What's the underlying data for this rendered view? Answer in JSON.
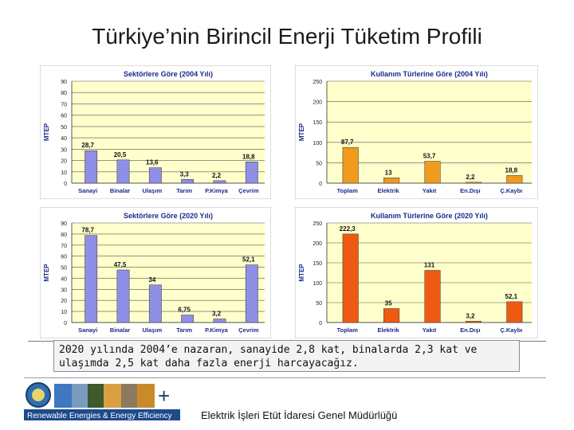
{
  "page": {
    "title": "Türkiye’nin Birincil Enerji Tüketim Profili"
  },
  "caption": "2020 yılında 2004’e nazaran, sanayide 2,8 kat, binalarda 2,3 kat ve ulaşımda 2,5 kat daha fazla enerji harcayacağız.",
  "footer": {
    "org": "Elektrik İşleri Etüt İdaresi Genel Müdürlüğü",
    "logo_text": "Renewable Energies & Energy Efficiency"
  },
  "colors": {
    "bar_blue": "#8f8fe6",
    "bar_orange": "#f09a1e",
    "bar_redorange": "#ee5a12",
    "plot_bg": "#ffffcc"
  },
  "chart_data": [
    {
      "type": "bar",
      "title": "Sektörlere Göre (2004 Yılı)",
      "ylabel": "MTEP",
      "ylim": [
        0,
        90
      ],
      "yticks": [
        "0",
        "10",
        "20",
        "30",
        "40",
        "50",
        "60",
        "70",
        "80",
        "90"
      ],
      "categories": [
        "Sanayi",
        "Binalar",
        "Ulaşım",
        "Tarım",
        "P.Kimya",
        "Çevrim"
      ],
      "values": [
        28.7,
        20.5,
        13.6,
        3.3,
        2.2,
        18.8
      ],
      "labels": [
        "28,7",
        "20,5",
        "13,6",
        "3,3",
        "2,2",
        "18,8"
      ],
      "color": "#8f8fe6"
    },
    {
      "type": "bar",
      "title": "Kullanım Türlerine Göre (2004 Yılı)",
      "ylabel": "MTEP",
      "ylim": [
        0,
        250
      ],
      "yticks": [
        "0",
        "50",
        "100",
        "150",
        "200",
        "250"
      ],
      "categories": [
        "Toplam",
        "Elektrik",
        "Yakıt",
        "En.Dışı",
        "Ç.Kaybı"
      ],
      "values": [
        87.7,
        13,
        53.7,
        2.2,
        18.8
      ],
      "labels": [
        "87,7",
        "13",
        "53,7",
        "2,2",
        "18,8"
      ],
      "color": "#f09a1e"
    },
    {
      "type": "bar",
      "title": "Sektörlere Göre (2020 Yılı)",
      "ylabel": "MTEP",
      "ylim": [
        0,
        90
      ],
      "yticks": [
        "0",
        "10",
        "20",
        "30",
        "40",
        "50",
        "60",
        "70",
        "80",
        "90"
      ],
      "categories": [
        "Sanayi",
        "Binalar",
        "Ulaşım",
        "Tarım",
        "P.Kimya",
        "Çevrim"
      ],
      "values": [
        78.7,
        47.5,
        34,
        6.75,
        3.2,
        52.1
      ],
      "labels": [
        "78,7",
        "47,5",
        "34",
        "6,75",
        "3,2",
        "52,1"
      ],
      "color": "#8f8fe6"
    },
    {
      "type": "bar",
      "title": "Kullanım Türlerine Göre (2020 Yılı)",
      "ylabel": "MTEP",
      "ylim": [
        0,
        250
      ],
      "yticks": [
        "0",
        "50",
        "100",
        "150",
        "200",
        "250"
      ],
      "categories": [
        "Toplam",
        "Elektrik",
        "Yakıt",
        "En.Dışı",
        "Ç.Kaybı"
      ],
      "values": [
        222.3,
        35,
        131,
        3.2,
        52.1
      ],
      "labels": [
        "222,3",
        "35",
        "131",
        "3,2",
        "52,1"
      ],
      "color": "#ee5a12"
    }
  ]
}
